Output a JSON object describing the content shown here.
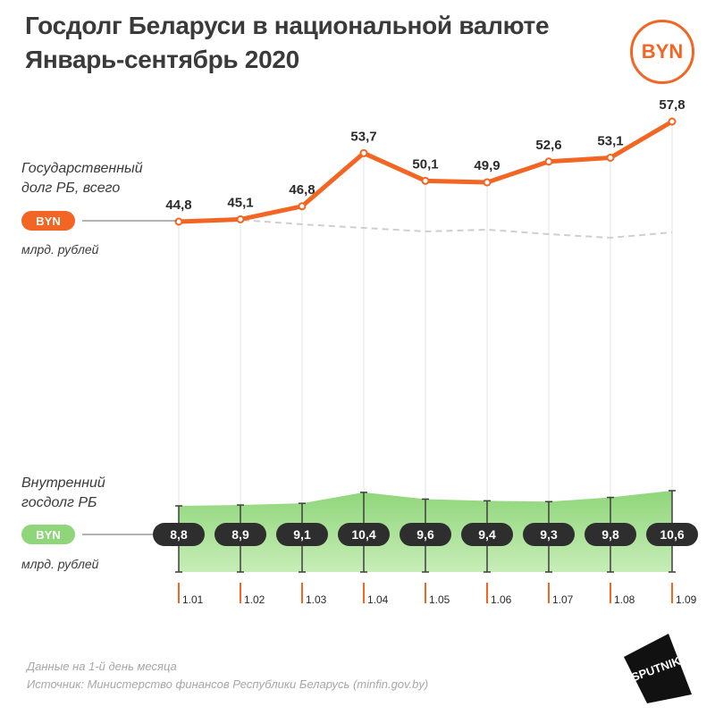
{
  "header": {
    "title_line1": "Госдолг Беларуси в национальной валюте",
    "title_line2": "Январь-сентябрь 2020",
    "currency_badge": "BYN"
  },
  "series_labels": {
    "total": {
      "line1": "Государственный",
      "line2": "долг РБ, всего",
      "badge": "BYN",
      "unit": "млрд. рублей"
    },
    "domestic": {
      "line1": "Внутренний",
      "line2": "госдолг РБ",
      "badge": "BYN",
      "unit": "млрд. рублей"
    }
  },
  "footer": {
    "note": "Данные на 1-й день месяца",
    "source": "Источник: Министерство финансов Республики Беларусь (minfin.gov.by)"
  },
  "logo_text": "SPUTNIK",
  "colors": {
    "accent": "#f26522",
    "green": "#8fd67a",
    "green_light": "#c7edb7",
    "pill_dark": "#2e2e2e",
    "dashed": "#cfcfcf"
  },
  "chart_data": {
    "type": "line",
    "categories": [
      "1.01",
      "1.02",
      "1.03",
      "1.04",
      "1.05",
      "1.06",
      "1.07",
      "1.08",
      "1.09"
    ],
    "series": [
      {
        "name": "Государственный долг РБ, всего",
        "values": [
          44.8,
          45.1,
          46.8,
          53.7,
          50.1,
          49.9,
          52.6,
          53.1,
          57.8
        ],
        "labels": [
          "44,8",
          "45,1",
          "46,8",
          "53,7",
          "50,1",
          "49,9",
          "52,6",
          "53,1",
          "57,8"
        ]
      },
      {
        "name": "Внутренний госдолг РБ",
        "values": [
          8.8,
          8.9,
          9.1,
          10.4,
          9.6,
          9.4,
          9.3,
          9.8,
          10.6
        ],
        "labels": [
          "8,8",
          "8,9",
          "9,1",
          "10,4",
          "9,6",
          "9,4",
          "9,3",
          "9,8",
          "10,6"
        ]
      }
    ],
    "grid": true
  }
}
